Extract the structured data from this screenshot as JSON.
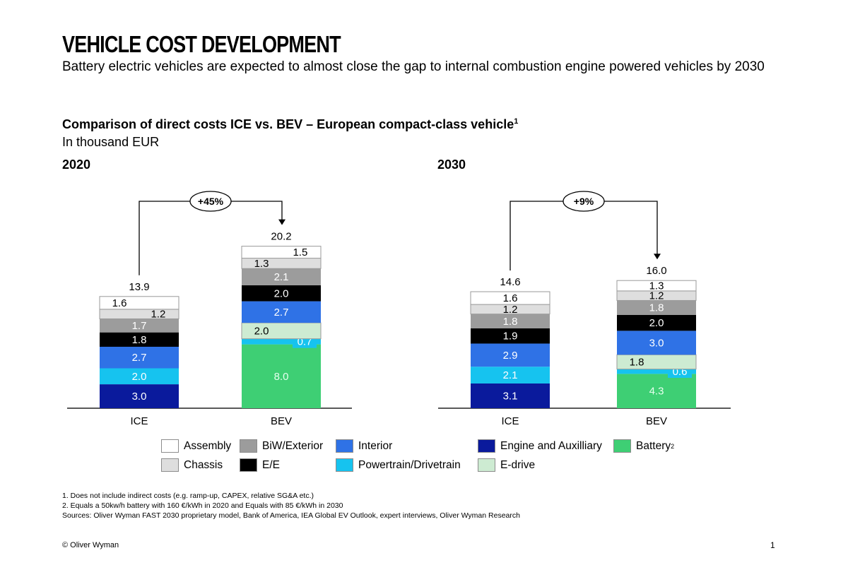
{
  "header": {
    "title": "VEHICLE COST DEVELOPMENT",
    "subtitle": "Battery electric vehicles are expected to almost close the gap to internal combustion engine powered vehicles by 2030"
  },
  "chart_heading": {
    "text": "Comparison of direct costs ICE vs. BEV – European compact-class vehicle",
    "footnote_mark": "1",
    "unit": "In thousand EUR"
  },
  "chart_data": [
    {
      "type": "bar",
      "stacked": true,
      "title": "2020",
      "categories": [
        "ICE",
        "BEV"
      ],
      "totals": [
        "13.9",
        "20.2"
      ],
      "delta_label": "+45%",
      "series": [
        {
          "name": "Engine and Auxilliary",
          "color": "#0a1a9c",
          "label_color": "#ffffff",
          "values": [
            3.0,
            0
          ]
        },
        {
          "name": "Battery",
          "color": "#3ecf74",
          "label_color": "#e6ffee",
          "values": [
            0,
            8.0
          ]
        },
        {
          "name": "Powertrain/Drivetrain",
          "color": "#16c3ef",
          "label_color": "#ffffff",
          "values": [
            2.0,
            0.7
          ]
        },
        {
          "name": "E-drive",
          "color": "#cdebd2",
          "label_color": "#000000",
          "values": [
            0,
            2.0
          ]
        },
        {
          "name": "Interior",
          "color": "#2f72e6",
          "label_color": "#ffffff",
          "values": [
            2.7,
            2.7
          ]
        },
        {
          "name": "E/E",
          "color": "#000000",
          "label_color": "#ffffff",
          "values": [
            1.8,
            2.0
          ]
        },
        {
          "name": "BiW/Exterior",
          "color": "#9c9c9c",
          "label_color": "#ffffff",
          "values": [
            1.7,
            2.1
          ]
        },
        {
          "name": "Chassis",
          "color": "#dedede",
          "label_color": "#000000",
          "values": [
            1.2,
            1.3
          ]
        },
        {
          "name": "Assembly",
          "color": "#ffffff",
          "label_color": "#000000",
          "values": [
            1.6,
            1.5
          ]
        }
      ],
      "labels": [
        [
          "3.0",
          "2.0",
          "2.7",
          "1.8",
          "1.7",
          "1.2",
          "1.6"
        ],
        [
          "8.0",
          "0.7",
          "2.0",
          "2.7",
          "2.0",
          "2.1",
          "1.3",
          "1.5"
        ]
      ]
    },
    {
      "type": "bar",
      "stacked": true,
      "title": "2030",
      "categories": [
        "ICE",
        "BEV"
      ],
      "totals": [
        "14.6",
        "16.0"
      ],
      "delta_label": "+9%",
      "series": [
        {
          "name": "Engine and Auxilliary",
          "color": "#0a1a9c",
          "label_color": "#ffffff",
          "values": [
            3.1,
            0
          ]
        },
        {
          "name": "Battery",
          "color": "#3ecf74",
          "label_color": "#e6ffee",
          "values": [
            0,
            4.3
          ]
        },
        {
          "name": "Powertrain/Drivetrain",
          "color": "#16c3ef",
          "label_color": "#ffffff",
          "values": [
            2.1,
            0.6
          ]
        },
        {
          "name": "E-drive",
          "color": "#cdebd2",
          "label_color": "#000000",
          "values": [
            0,
            1.8
          ]
        },
        {
          "name": "Interior",
          "color": "#2f72e6",
          "label_color": "#ffffff",
          "values": [
            2.9,
            3.0
          ]
        },
        {
          "name": "E/E",
          "color": "#000000",
          "label_color": "#ffffff",
          "values": [
            1.9,
            2.0
          ]
        },
        {
          "name": "BiW/Exterior",
          "color": "#9c9c9c",
          "label_color": "#ffffff",
          "values": [
            1.8,
            1.8
          ]
        },
        {
          "name": "Chassis",
          "color": "#dedede",
          "label_color": "#000000",
          "values": [
            1.2,
            1.2
          ]
        },
        {
          "name": "Assembly",
          "color": "#ffffff",
          "label_color": "#000000",
          "values": [
            1.6,
            1.3
          ]
        }
      ],
      "labels": [
        [
          "3.1",
          "2.1",
          "2.9",
          "1.9",
          "1.8",
          "1.2",
          "1.6"
        ],
        [
          "4.3",
          "0.6",
          "1.8",
          "3.0",
          "2.0",
          "1.8",
          "1.2",
          "1.3"
        ]
      ]
    }
  ],
  "legend": [
    {
      "label": "Assembly",
      "color": "#ffffff"
    },
    {
      "label": "Chassis",
      "color": "#dedede"
    },
    {
      "label": "BiW/Exterior",
      "color": "#9c9c9c"
    },
    {
      "label": "E/E",
      "color": "#000000"
    },
    {
      "label": "Interior",
      "color": "#2f72e6"
    },
    {
      "label": "Powertrain/Drivetrain",
      "color": "#16c3ef"
    },
    {
      "label": "Engine and Auxilliary",
      "color": "#0a1a9c"
    },
    {
      "label": "E-drive",
      "color": "#cdebd2"
    },
    {
      "label": "Battery",
      "color": "#3ecf74",
      "sup": "2"
    }
  ],
  "footnotes": [
    "1. Does not include indirect costs (e.g. ramp-up, CAPEX, relative SG&A etc.)",
    "2. Equals a 50kw/h battery with 160 €/kWh in 2020 and Equals with 85 €/kWh in 2030",
    "Sources: Oliver Wyman FAST 2030 proprietary model, Bank of America, IEA Global EV Outlook, expert interviews, Oliver Wyman Research"
  ],
  "footer": {
    "copyright": "© Oliver Wyman",
    "page_number": "1"
  }
}
